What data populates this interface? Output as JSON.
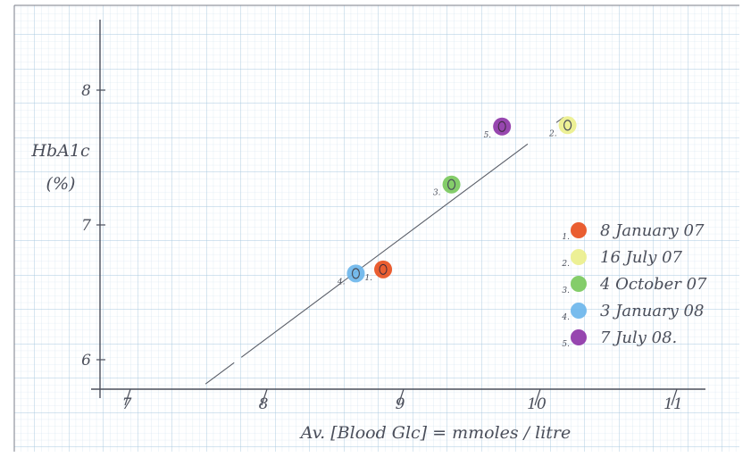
{
  "chart_data": {
    "type": "scatter",
    "title": "",
    "xlabel": "Av. [Blood Glc] = mmoles / litre",
    "ylabel_line1": "HbA1c",
    "ylabel_line2": "(%)",
    "x_ticks": [
      "7",
      "8",
      "9",
      "10",
      "11"
    ],
    "x_tick_values": [
      7,
      8,
      9,
      10,
      11
    ],
    "y_ticks": [
      "6",
      "7",
      "8"
    ],
    "y_tick_values": [
      6,
      7,
      8
    ],
    "xlim": [
      6.8,
      11.2
    ],
    "ylim": [
      5.8,
      8.3
    ],
    "grid": true,
    "legend_position": "right",
    "points": [
      {
        "num": "1.",
        "x": 8.85,
        "y": 6.67,
        "color": "#e8501f",
        "hollow": false
      },
      {
        "num": "2.",
        "x": 10.2,
        "y": 7.74,
        "color": "#ecef8c",
        "hollow": true
      },
      {
        "num": "3.",
        "x": 9.35,
        "y": 7.3,
        "color": "#79c95d",
        "hollow": true
      },
      {
        "num": "4.",
        "x": 8.65,
        "y": 6.64,
        "color": "#6cb6ec",
        "hollow": true
      },
      {
        "num": "5.",
        "x": 9.72,
        "y": 7.73,
        "color": "#8e36a8",
        "hollow": false
      }
    ],
    "fit_line": {
      "x": [
        7.55,
        10.45
      ],
      "y": [
        5.82,
        8.01
      ]
    },
    "legend": [
      {
        "num": "1.",
        "label": "8 January 07",
        "color": "#e8501f"
      },
      {
        "num": "2.",
        "label": "16 July 07",
        "color": "#ecef8c"
      },
      {
        "num": "3.",
        "label": "4 October 07",
        "color": "#79c95d"
      },
      {
        "num": "4.",
        "label": "3 January 08",
        "color": "#6cb6ec"
      },
      {
        "num": "5.",
        "label": "7 July 08.",
        "color": "#8e36a8"
      }
    ]
  }
}
